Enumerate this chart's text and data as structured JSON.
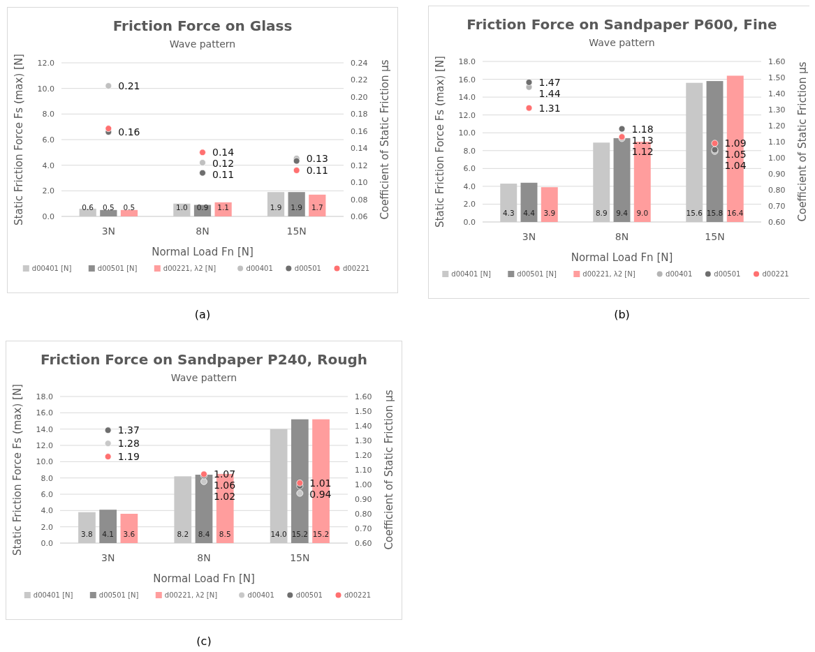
{
  "chart_data": [
    {
      "type": "bar",
      "title": "Friction Force on Glass",
      "subtitle": "Wave pattern",
      "xlabel": "Normal Load Fn [N]",
      "ylabel": "Static Friction Force Fs (max) [N]",
      "y2label": "Coefficient of Static Friction µs",
      "categories": [
        "3N",
        "8N",
        "15N"
      ],
      "ylim": [
        0,
        12
      ],
      "yticks": [
        {
          "value": 0,
          "label": "0.0"
        },
        {
          "value": 2,
          "label": "2.0"
        },
        {
          "value": 4,
          "label": "4.0"
        },
        {
          "value": 6,
          "label": "6.0"
        },
        {
          "value": 8,
          "label": "8.0"
        },
        {
          "value": 10,
          "label": "10.0"
        },
        {
          "value": 12,
          "label": "12.0"
        }
      ],
      "y2lim": [
        0.06,
        0.24
      ],
      "y2ticks": [
        0.06,
        0.08,
        {
          "value": 0.1,
          "label": "0.10"
        },
        0.12,
        0.14,
        0.16,
        0.18,
        {
          "value": 0.2,
          "label": "0.20"
        },
        0.22,
        0.24
      ],
      "grid": "y",
      "legend": "bottom",
      "marker": "circle",
      "annotations": [
        "(a)"
      ],
      "series": [
        {
          "name": "d00401 [N]",
          "color": "#c8c8c8",
          "values": [
            0.6,
            1.0,
            1.9
          ],
          "value_labels": [
            "0.6",
            "1.0",
            "1.9"
          ]
        },
        {
          "name": "d00501 [N]",
          "color": "#8e8e8e",
          "values": [
            0.5,
            0.9,
            1.9
          ],
          "value_labels": [
            "0.5",
            "0.9",
            "1.9"
          ]
        },
        {
          "name": "d00221, λ2 [N]",
          "color": "#ff9d9d",
          "values": [
            0.5,
            1.1,
            1.7
          ],
          "value_labels": [
            "0.5",
            "1.1",
            "1.7"
          ]
        },
        {
          "name": "d00401",
          "type": "scatter",
          "axis": "y2",
          "color": "#c0c0c0",
          "values": [
            0.213,
            0.123,
            0.128
          ],
          "value_labels": [
            "0.21",
            "0.12",
            "0.13"
          ]
        },
        {
          "name": "d00501",
          "type": "scatter",
          "axis": "y2",
          "color": "#6e6e6e",
          "values": [
            0.159,
            0.111,
            0.125
          ],
          "value_labels": [
            "0.16",
            "0.11",
            null
          ]
        },
        {
          "name": "d00221",
          "type": "scatter",
          "axis": "y2",
          "color": "#ff7070",
          "values": [
            0.163,
            0.135,
            0.114
          ],
          "value_labels": [
            null,
            "0.14",
            "0.11"
          ]
        }
      ]
    },
    {
      "type": "bar",
      "title": "Friction Force on Sandpaper P600, Fine",
      "subtitle": "Wave pattern",
      "xlabel": "Normal Load Fn [N]",
      "ylabel": "Static Friction Force Fs (max) [N]",
      "y2label": "Coefficient of Static Friction µs",
      "categories": [
        "3N",
        "8N",
        "15N"
      ],
      "ylim": [
        0,
        18
      ],
      "yticks": [
        {
          "value": 0,
          "label": "0.0"
        },
        {
          "value": 2,
          "label": "2.0"
        },
        {
          "value": 4,
          "label": "4.0"
        },
        {
          "value": 6,
          "label": "6.0"
        },
        {
          "value": 8,
          "label": "8.0"
        },
        {
          "value": 10,
          "label": "10.0"
        },
        {
          "value": 12,
          "label": "12.0"
        },
        {
          "value": 14,
          "label": "14.0"
        },
        {
          "value": 16,
          "label": "16.0"
        },
        {
          "value": 18,
          "label": "18.0"
        }
      ],
      "y2lim": [
        0.6,
        1.6
      ],
      "y2ticks": [
        {
          "value": 0.6,
          "label": "0.60"
        },
        {
          "value": 0.7,
          "label": "0.70"
        },
        {
          "value": 0.8,
          "label": "0.80"
        },
        {
          "value": 0.9,
          "label": "0.90"
        },
        {
          "value": 1.0,
          "label": "1.00"
        },
        {
          "value": 1.1,
          "label": "1.10"
        },
        {
          "value": 1.2,
          "label": "1.20"
        },
        {
          "value": 1.3,
          "label": "1.30"
        },
        {
          "value": 1.4,
          "label": "1.40"
        },
        {
          "value": 1.5,
          "label": "1.50"
        },
        {
          "value": 1.6,
          "label": "1.60"
        }
      ],
      "grid": "y",
      "legend": "bottom",
      "marker": "circle",
      "annotations": [
        "(b)"
      ],
      "series": [
        {
          "name": "d00401 [N]",
          "color": "#c8c8c8",
          "values": [
            4.3,
            8.9,
            15.6
          ],
          "value_labels": [
            "4.3",
            "8.9",
            "15.6"
          ]
        },
        {
          "name": "d00501 [N]",
          "color": "#8e8e8e",
          "values": [
            4.4,
            9.4,
            15.8
          ],
          "value_labels": [
            "4.4",
            "9.4",
            "15.8"
          ]
        },
        {
          "name": "d00221, λ2 [N]",
          "color": "#ff9d9d",
          "values": [
            3.9,
            9.0,
            16.4
          ],
          "value_labels": [
            "3.9",
            "9.0",
            "16.4"
          ]
        },
        {
          "name": "d00401",
          "type": "scatter",
          "axis": "y2",
          "color": "#b4b4b4",
          "values": [
            1.44,
            1.12,
            1.04
          ],
          "value_labels": [
            "1.44",
            "1.12",
            "1.04"
          ]
        },
        {
          "name": "d00501",
          "type": "scatter",
          "axis": "y2",
          "color": "#6e6e6e",
          "values": [
            1.47,
            1.18,
            1.05
          ],
          "value_labels": [
            "1.47",
            "1.18",
            "1.05"
          ]
        },
        {
          "name": "d00221",
          "type": "scatter",
          "axis": "y2",
          "color": "#ff7070",
          "values": [
            1.31,
            1.13,
            1.09
          ],
          "value_labels": [
            "1.31",
            "1.13",
            "1.09"
          ]
        }
      ]
    },
    {
      "type": "bar",
      "title": "Friction Force on Sandpaper P240, Rough",
      "subtitle": "Wave pattern",
      "xlabel": "Normal Load Fn [N]",
      "ylabel": "Static Friction Force Fs (max) [N]",
      "y2label": "Coefficient of Static Friction µs",
      "categories": [
        "3N",
        "8N",
        "15N"
      ],
      "ylim": [
        0,
        18
      ],
      "yticks": [
        {
          "value": 0,
          "label": "0.0"
        },
        {
          "value": 2,
          "label": "2.0"
        },
        {
          "value": 4,
          "label": "4.0"
        },
        {
          "value": 6,
          "label": "6.0"
        },
        {
          "value": 8,
          "label": "8.0"
        },
        {
          "value": 10,
          "label": "10.0"
        },
        {
          "value": 12,
          "label": "12.0"
        },
        {
          "value": 14,
          "label": "14.0"
        },
        {
          "value": 16,
          "label": "16.0"
        },
        {
          "value": 18,
          "label": "18.0"
        }
      ],
      "y2lim": [
        0.6,
        1.6
      ],
      "y2ticks": [
        {
          "value": 0.6,
          "label": "0.60"
        },
        {
          "value": 0.7,
          "label": "0.70"
        },
        {
          "value": 0.8,
          "label": "0.80"
        },
        {
          "value": 0.9,
          "label": "0.90"
        },
        {
          "value": 1.0,
          "label": "1.00"
        },
        {
          "value": 1.1,
          "label": "1.10"
        },
        {
          "value": 1.2,
          "label": "1.20"
        },
        {
          "value": 1.3,
          "label": "1.30"
        },
        {
          "value": 1.4,
          "label": "1.40"
        },
        {
          "value": 1.5,
          "label": "1.50"
        },
        {
          "value": 1.6,
          "label": "1.60"
        }
      ],
      "grid": "y",
      "legend": "bottom",
      "marker": "circle",
      "annotations": [
        "(c)"
      ],
      "series": [
        {
          "name": "d00401 [N]",
          "color": "#c8c8c8",
          "values": [
            3.8,
            8.2,
            14.0
          ],
          "value_labels": [
            "3.8",
            "8.2",
            "14.0"
          ]
        },
        {
          "name": "d00501 [N]",
          "color": "#8e8e8e",
          "values": [
            4.1,
            8.4,
            15.2
          ],
          "value_labels": [
            "4.1",
            "8.4",
            "15.2"
          ]
        },
        {
          "name": "d00221, λ2 [N]",
          "color": "#ff9d9d",
          "values": [
            3.6,
            8.5,
            15.2
          ],
          "value_labels": [
            "3.6",
            "8.5",
            "15.2"
          ]
        },
        {
          "name": "d00401",
          "type": "scatter",
          "axis": "y2",
          "color": "#c8c8c8",
          "values": [
            1.28,
            1.02,
            0.94
          ],
          "value_labels": [
            "1.28",
            "1.02",
            "0.94"
          ]
        },
        {
          "name": "d00501",
          "type": "scatter",
          "axis": "y2",
          "color": "#6e6e6e",
          "values": [
            1.37,
            1.06,
            0.99
          ],
          "value_labels": [
            "1.37",
            "1.06",
            null
          ]
        },
        {
          "name": "d00221",
          "type": "scatter",
          "axis": "y2",
          "color": "#ff7070",
          "values": [
            1.19,
            1.07,
            1.01
          ],
          "value_labels": [
            "1.19",
            "1.07",
            "1.01"
          ]
        }
      ]
    }
  ]
}
